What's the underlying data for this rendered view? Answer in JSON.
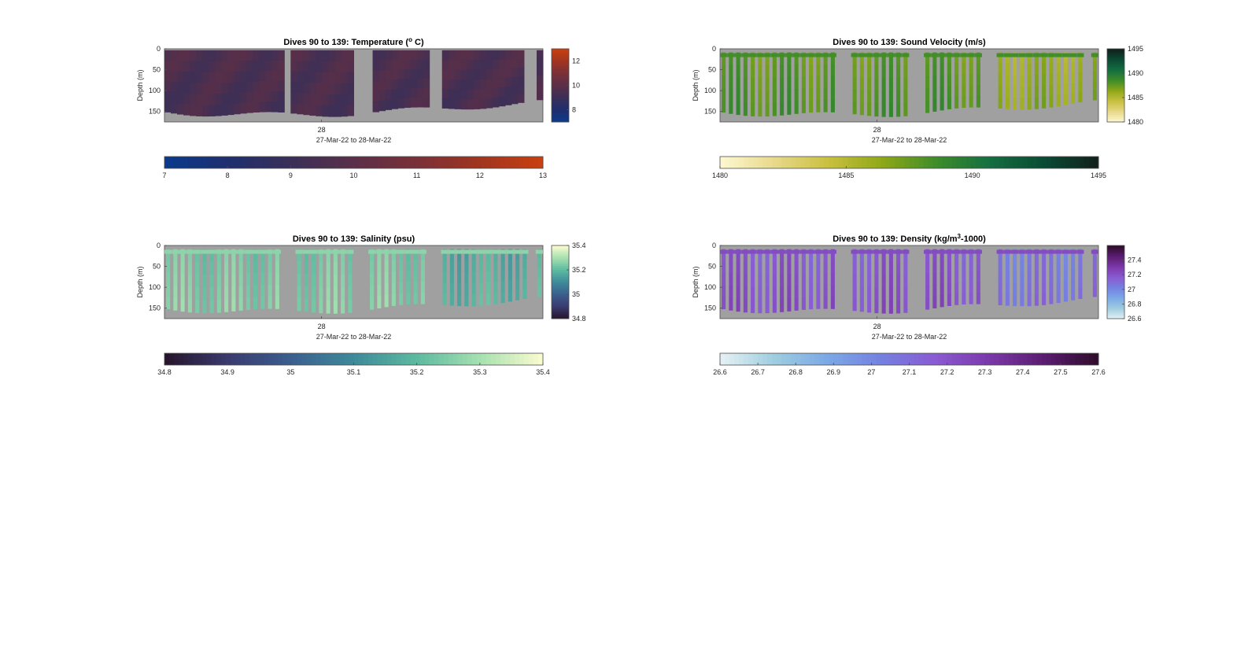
{
  "chart_data": [
    {
      "type": "heatmap",
      "title": "Dives 90 to 139: Temperature (",
      "title_sup": "o",
      "title_after": " C)",
      "ylabel": "Depth (m)",
      "xlabel": "27-Mar-22 to 28-Mar-22",
      "xtick": "28",
      "yticks": [
        "0",
        "50",
        "100",
        "150"
      ],
      "ylim": [
        0,
        175
      ],
      "clim": [
        7,
        13
      ],
      "side_cbar_ticks": [
        "12",
        "10",
        "8"
      ],
      "bottom_cbar_ticks": [
        "7",
        "8",
        "9",
        "10",
        "11",
        "12",
        "13"
      ],
      "colormap": [
        "#0a3a8c",
        "#1f2f6e",
        "#3a2f58",
        "#5a2f48",
        "#7a3038",
        "#a03520",
        "#c84010"
      ],
      "nan_color": "#a0a0a0",
      "fill": "continuous",
      "typical_value": 9.6
    },
    {
      "type": "heatmap",
      "title": "Dives 90 to 139: Sound Velocity (m/s)",
      "ylabel": "Depth (m)",
      "xlabel": "27-Mar-22 to 28-Mar-22",
      "xtick": "28",
      "yticks": [
        "0",
        "50",
        "100",
        "150"
      ],
      "ylim": [
        0,
        175
      ],
      "clim": [
        1480,
        1495
      ],
      "side_cbar_ticks": [
        "1495",
        "1490",
        "1485",
        "1480"
      ],
      "bottom_cbar_ticks": [
        "1480",
        "1485",
        "1490",
        "1495"
      ],
      "colormap": [
        "#fdf8d2",
        "#e8d98a",
        "#c9c040",
        "#8fa818",
        "#3e8c2a",
        "#146e40",
        "#0b4a34",
        "#11201a"
      ],
      "nan_color": "#a0a0a0",
      "fill": "bars",
      "typical_value": 1488
    },
    {
      "type": "heatmap",
      "title": "Dives 90 to 139: Salinity (psu)",
      "ylabel": "Depth (m)",
      "xlabel": "27-Mar-22 to 28-Mar-22",
      "xtick": "28",
      "yticks": [
        "0",
        "50",
        "100",
        "150"
      ],
      "ylim": [
        0,
        175
      ],
      "clim": [
        34.8,
        35.4
      ],
      "side_cbar_ticks": [
        "35.4",
        "35.2",
        "35",
        "34.8"
      ],
      "bottom_cbar_ticks": [
        "34.8",
        "34.9",
        "35",
        "35.1",
        "35.2",
        "35.3",
        "35.4"
      ],
      "colormap": [
        "#26142a",
        "#3a3a6e",
        "#3b5e8e",
        "#3e8a9a",
        "#5cbaa0",
        "#a6e0b0",
        "#fbfcd0"
      ],
      "nan_color": "#a0a0a0",
      "fill": "bars",
      "typical_value": 35.25
    },
    {
      "type": "heatmap",
      "title": "Dives 90 to 139: Density (kg/m",
      "title_sup": "3",
      "title_after": "-1000)",
      "ylabel": "Depth (m)",
      "xlabel": "27-Mar-22 to 28-Mar-22",
      "xtick": "28",
      "yticks": [
        "0",
        "50",
        "100",
        "150"
      ],
      "ylim": [
        0,
        175
      ],
      "clim": [
        26.6,
        27.6
      ],
      "side_cbar_ticks": [
        "27.4",
        "27.2",
        "27",
        "26.8",
        "26.6"
      ],
      "bottom_cbar_ticks": [
        "26.6",
        "26.7",
        "26.8",
        "26.9",
        "27",
        "27.1",
        "27.2",
        "27.3",
        "27.4",
        "27.5",
        "27.6"
      ],
      "colormap": [
        "#e6f2f4",
        "#9fcde0",
        "#7ba8e6",
        "#7580e0",
        "#8a5ad2",
        "#7a38a8",
        "#5a1c70",
        "#2e0c2a"
      ],
      "nan_color": "#a0a0a0",
      "fill": "bars",
      "typical_value": 27.2
    }
  ]
}
